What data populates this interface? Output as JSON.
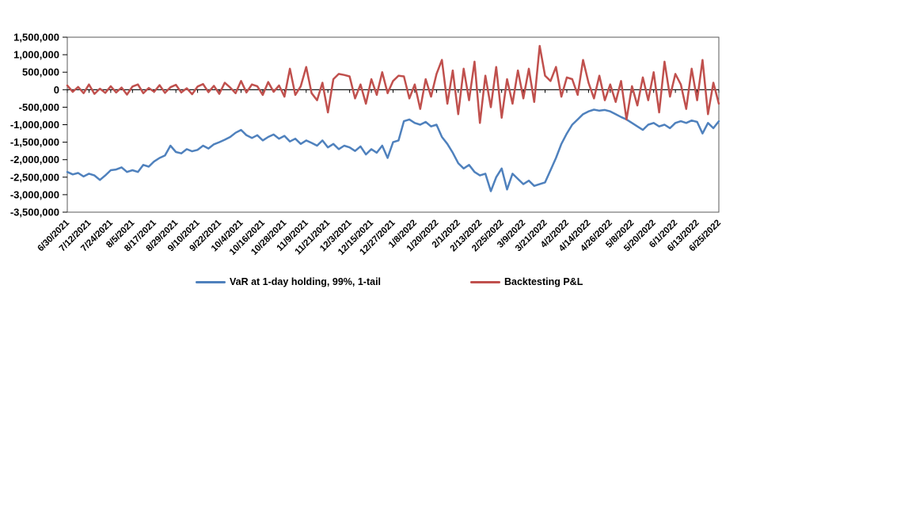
{
  "chart_data": {
    "type": "line",
    "title": "",
    "xlabel": "",
    "ylabel": "",
    "grid": false,
    "legend_position": "bottom",
    "y_min": -3500000,
    "y_max": 1500000,
    "y_step": 500000,
    "y_tick_labels": [
      "1,500,000",
      "1,000,000",
      "500,000",
      "0",
      "-500,000",
      "-1,000,000",
      "-1,500,000",
      "-2,000,000",
      "-2,500,000",
      "-3,000,000",
      "-3,500,000"
    ],
    "x_tick_labels": [
      "6/30/2021",
      "7/12/2021",
      "7/24/2021",
      "8/5/2021",
      "8/17/2021",
      "8/29/2021",
      "9/10/2021",
      "9/22/2021",
      "10/4/2021",
      "10/16/2021",
      "10/28/2021",
      "11/9/2021",
      "11/21/2021",
      "12/3/2021",
      "12/15/2021",
      "12/27/2021",
      "1/8/2022",
      "1/20/2022",
      "2/1/2022",
      "2/13/2022",
      "2/25/2022",
      "3/9/2022",
      "3/21/2022",
      "4/2/2022",
      "4/14/2022",
      "4/26/2022",
      "5/8/2022",
      "5/20/2022",
      "6/1/2022",
      "6/13/2022",
      "6/25/2022"
    ],
    "x_range_note": "daily series from 6/30/2021 to 6/25/2022, values estimated every 3 days",
    "series": [
      {
        "name": "VaR at 1-day holding, 99%, 1-tail",
        "color": "#4F81BD",
        "values": [
          -2350000,
          -2420000,
          -2380000,
          -2480000,
          -2400000,
          -2450000,
          -2580000,
          -2450000,
          -2300000,
          -2280000,
          -2220000,
          -2350000,
          -2300000,
          -2350000,
          -2150000,
          -2200000,
          -2050000,
          -1950000,
          -1880000,
          -1600000,
          -1780000,
          -1820000,
          -1700000,
          -1760000,
          -1720000,
          -1600000,
          -1680000,
          -1560000,
          -1500000,
          -1430000,
          -1350000,
          -1230000,
          -1150000,
          -1300000,
          -1380000,
          -1300000,
          -1450000,
          -1350000,
          -1280000,
          -1400000,
          -1320000,
          -1480000,
          -1400000,
          -1550000,
          -1450000,
          -1520000,
          -1600000,
          -1450000,
          -1650000,
          -1550000,
          -1700000,
          -1600000,
          -1650000,
          -1750000,
          -1620000,
          -1850000,
          -1700000,
          -1800000,
          -1600000,
          -1950000,
          -1500000,
          -1450000,
          -900000,
          -850000,
          -950000,
          -1000000,
          -920000,
          -1050000,
          -1000000,
          -1350000,
          -1550000,
          -1800000,
          -2100000,
          -2250000,
          -2150000,
          -2350000,
          -2450000,
          -2400000,
          -2900000,
          -2500000,
          -2250000,
          -2850000,
          -2400000,
          -2550000,
          -2700000,
          -2600000,
          -2750000,
          -2700000,
          -2650000,
          -2300000,
          -1950000,
          -1550000,
          -1250000,
          -1000000,
          -850000,
          -700000,
          -620000,
          -570000,
          -600000,
          -580000,
          -620000,
          -700000,
          -780000,
          -850000,
          -950000,
          -1050000,
          -1150000,
          -1000000,
          -950000,
          -1050000,
          -1000000,
          -1100000,
          -950000,
          -900000,
          -950000,
          -880000,
          -920000,
          -1250000,
          -950000,
          -1100000,
          -900000
        ]
      },
      {
        "name": "Backtesting P&L",
        "color": "#C0504D",
        "values": [
          120000,
          -60000,
          80000,
          -100000,
          150000,
          -120000,
          30000,
          -90000,
          100000,
          -80000,
          60000,
          -140000,
          90000,
          150000,
          -100000,
          50000,
          -60000,
          130000,
          -90000,
          70000,
          140000,
          -80000,
          40000,
          -130000,
          90000,
          160000,
          -70000,
          110000,
          -120000,
          200000,
          60000,
          -100000,
          250000,
          -80000,
          150000,
          100000,
          -150000,
          220000,
          -60000,
          120000,
          -200000,
          600000,
          -150000,
          100000,
          650000,
          -100000,
          -300000,
          200000,
          -650000,
          300000,
          450000,
          420000,
          380000,
          -250000,
          150000,
          -400000,
          300000,
          -150000,
          500000,
          -100000,
          250000,
          400000,
          380000,
          -250000,
          150000,
          -550000,
          300000,
          -200000,
          450000,
          850000,
          -400000,
          550000,
          -700000,
          600000,
          -300000,
          800000,
          -950000,
          400000,
          -500000,
          650000,
          -800000,
          300000,
          -400000,
          550000,
          -250000,
          600000,
          -350000,
          1250000,
          400000,
          250000,
          650000,
          -200000,
          350000,
          300000,
          -150000,
          850000,
          200000,
          -250000,
          400000,
          -300000,
          150000,
          -350000,
          250000,
          -850000,
          100000,
          -450000,
          350000,
          -300000,
          500000,
          -650000,
          800000,
          -200000,
          450000,
          150000,
          -550000,
          600000,
          -300000,
          850000,
          -700000,
          200000,
          -400000
        ]
      }
    ]
  },
  "colors": {
    "background": "#FFFFFF",
    "axis": "#000000",
    "plot_border": "#595959",
    "var_series": "#4F81BD",
    "pnl_series": "#C0504D"
  }
}
